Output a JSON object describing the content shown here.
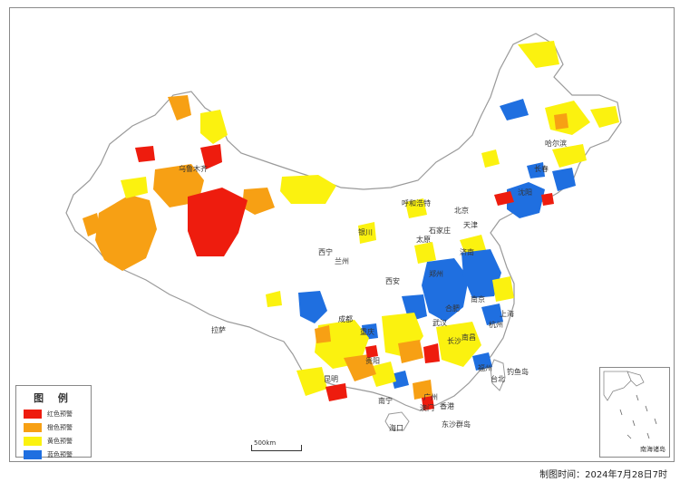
{
  "legend": {
    "title": "图 例",
    "items": [
      {
        "label": "红色预警",
        "color": "#ee1c0e"
      },
      {
        "label": "橙色预警",
        "color": "#f7a014"
      },
      {
        "label": "黄色预警",
        "color": "#fbf20f"
      },
      {
        "label": "蓝色预警",
        "color": "#1f6fe0"
      }
    ]
  },
  "scale": {
    "label": "500km"
  },
  "inset": {
    "label": "南海诸岛"
  },
  "timestamp": "制图时间：2024年7月28日7时",
  "cities": [
    "乌鲁木齐",
    "哈尔滨",
    "长春",
    "沈阳",
    "呼和浩特",
    "北京",
    "天津",
    "石家庄",
    "太原",
    "银川",
    "西宁",
    "兰州",
    "济南",
    "郑州",
    "西安",
    "南京",
    "合肥",
    "上海",
    "杭州",
    "武汉",
    "成都",
    "重庆",
    "长沙",
    "南昌",
    "福州",
    "贵阳",
    "昆明",
    "南宁",
    "广州",
    "台北",
    "香港",
    "澳门",
    "海口",
    "拉萨",
    "钓鱼岛",
    "东沙群岛"
  ]
}
